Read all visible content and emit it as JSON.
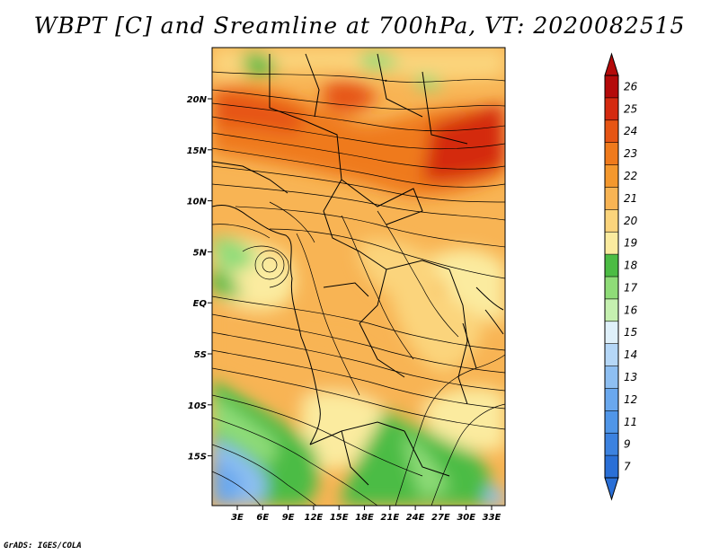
{
  "title": "WBPT [C] and Sreamline at 700hPa, VT: 2020082515",
  "credit": "GrADS: IGES/COLA",
  "map": {
    "lat_labels": [
      "20N",
      "15N",
      "10N",
      "5N",
      "EQ",
      "5S",
      "10S",
      "15S"
    ],
    "lon_labels": [
      "3E",
      "6E",
      "9E",
      "12E",
      "15E",
      "18E",
      "21E",
      "24E",
      "27E",
      "30E",
      "33E"
    ]
  },
  "colorbar": {
    "labels": [
      "7",
      "9",
      "11",
      "12",
      "13",
      "14",
      "15",
      "16",
      "17",
      "18",
      "19",
      "20",
      "21",
      "22",
      "23",
      "24",
      "25",
      "26"
    ],
    "colors": [
      "#2a6fd6",
      "#3c82e0",
      "#5096e8",
      "#6aa8ee",
      "#8ebff2",
      "#b5d7f7",
      "#dff0fa",
      "#c5f0b0",
      "#8fdc78",
      "#4cbc44",
      "#fbeb9f",
      "#fbd47c",
      "#f8b454",
      "#f4982e",
      "#ef7a1c",
      "#e65514",
      "#d42a10",
      "#b40a0a"
    ]
  }
}
